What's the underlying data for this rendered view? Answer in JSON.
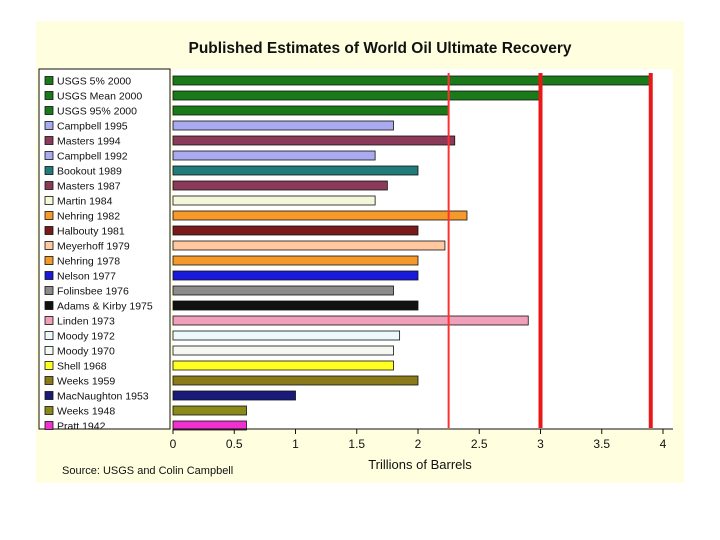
{
  "chart_data": {
    "type": "bar",
    "orientation": "horizontal",
    "title": "Published Estimates of World Oil Ultimate Recovery",
    "xlabel": "Trillions of Barrels",
    "ylabel": "",
    "xlim": [
      0,
      4
    ],
    "xticks": [
      "0",
      "0.5",
      "1",
      "1.5",
      "2",
      "2.5",
      "3",
      "3.5",
      "4"
    ],
    "grid": false,
    "source": "Source:  USGS and Colin Campbell",
    "categories": [
      "USGS 5% 2000",
      "USGS Mean 2000",
      "USGS 95% 2000",
      "Campbell 1995",
      "Masters 1994",
      "Campbell 1992",
      "Bookout 1989",
      "Masters 1987",
      "Martin 1984",
      "Nehring 1982",
      "Halbouty 1981",
      "Meyerhoff 1979",
      "Nehring 1978",
      "Nelson 1977",
      "Folinsbee 1976",
      "Adams & Kirby 1975",
      "Linden 1973",
      "Moody 1972",
      "Moody 1970",
      "Shell 1968",
      "Weeks 1959",
      "MacNaughton 1953",
      "Weeks 1948",
      "Pratt 1942"
    ],
    "values": [
      3.9,
      3.0,
      2.25,
      1.8,
      2.3,
      1.65,
      2.0,
      1.75,
      1.65,
      2.4,
      2.0,
      2.22,
      2.0,
      2.0,
      1.8,
      2.0,
      2.9,
      1.85,
      1.8,
      1.8,
      2.0,
      1.0,
      0.6,
      0.6
    ],
    "colors": [
      "#1a7a1a",
      "#1a7a1a",
      "#1a7a1a",
      "#aaaaf0",
      "#8b3a5a",
      "#aaaaf0",
      "#207b7b",
      "#8b3a5a",
      "#f4f8d8",
      "#f59a2a",
      "#7b1a1a",
      "#ffc8a0",
      "#f59a2a",
      "#1a1adb",
      "#8c8c8c",
      "#111111",
      "#f0a0b8",
      "#ecf8fc",
      "#f4f8f0",
      "#ffff20",
      "#8a7a1a",
      "#1a1a7a",
      "#8a8a1a",
      "#f030d0"
    ],
    "reference_lines": [
      {
        "value": 2.25,
        "color": "#ff3030",
        "style": "thin"
      },
      {
        "value": 3.0,
        "color": "#e81818",
        "style": "thick"
      },
      {
        "value": 3.9,
        "color": "#e81818",
        "style": "thick"
      }
    ]
  }
}
